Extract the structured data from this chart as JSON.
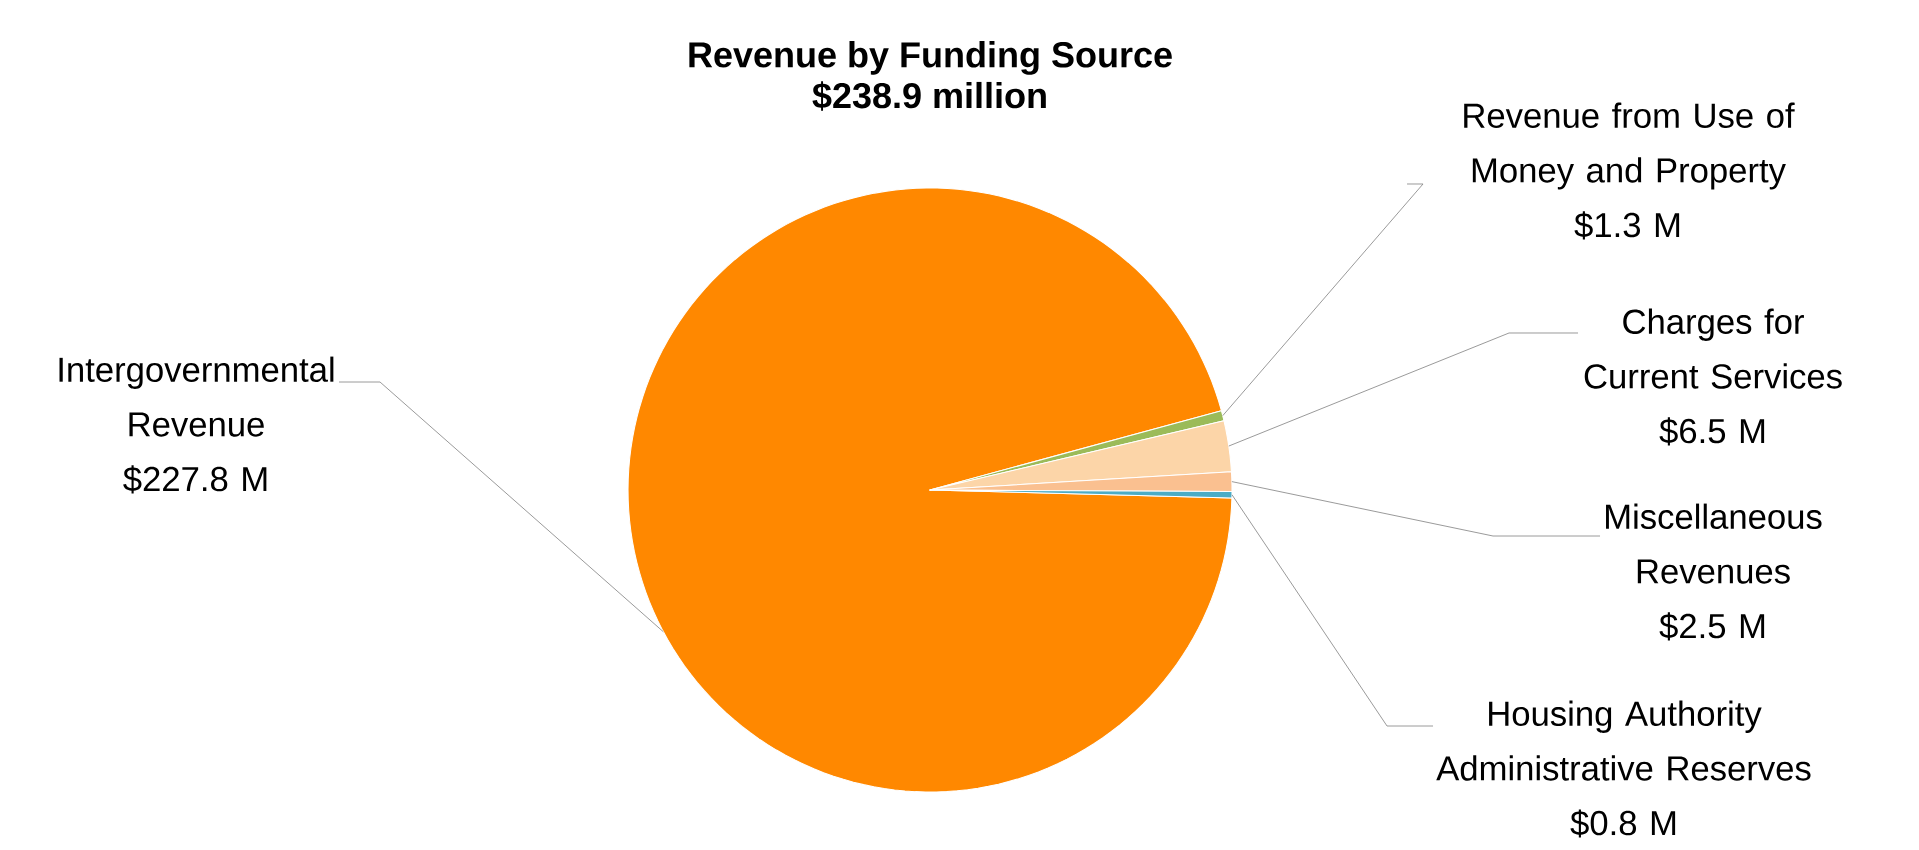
{
  "chart_data": {
    "type": "pie",
    "title": "Revenue by Funding Source",
    "subtitle": "$238.9 million",
    "categories": [
      "Intergovernmental Revenue",
      "Revenue from Use of Money and Property",
      "Charges for Current Services",
      "Miscellaneous Revenues",
      "Housing Authority Administrative Reserves"
    ],
    "values": [
      227.8,
      1.3,
      6.5,
      2.5,
      0.8
    ],
    "value_labels": [
      "$227.8 M",
      "$1.3 M",
      "$6.5 M",
      "$2.5 M",
      "$0.8 M"
    ],
    "colors": [
      "#ff8800",
      "#9bbb59",
      "#fcd5a8",
      "#fac090",
      "#4bacc6"
    ]
  }
}
